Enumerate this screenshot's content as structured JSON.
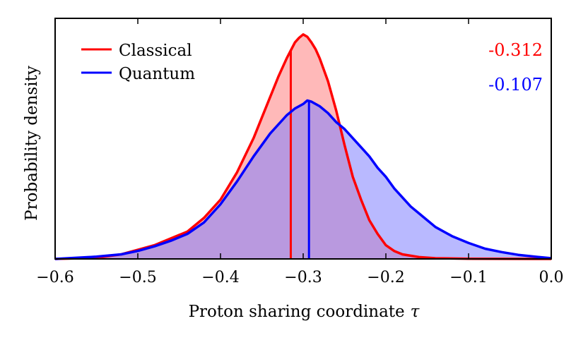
{
  "chart_data": {
    "type": "area",
    "title": "",
    "xlabel": "Proton sharing coordinate",
    "xlabel_symbol": "τ",
    "ylabel": "Probability density",
    "xlim": [
      -0.6,
      0.0
    ],
    "ylim": [
      0,
      1.0
    ],
    "x_ticks": [
      -0.6,
      -0.5,
      -0.4,
      -0.3,
      -0.2,
      -0.1,
      0.0
    ],
    "x_tick_labels": [
      "−0.6",
      "−0.5",
      "−0.4",
      "−0.3",
      "−0.2",
      "−0.1",
      "0.0"
    ],
    "y_ticks_shown": false,
    "legend": {
      "position": "top-left"
    },
    "series": [
      {
        "name": "Classical",
        "color": "#ff0000",
        "fill": "#ff8080",
        "mean": -0.312,
        "mean_label": "-0.312",
        "x": [
          -0.6,
          -0.55,
          -0.52,
          -0.5,
          -0.48,
          -0.46,
          -0.44,
          -0.42,
          -0.4,
          -0.38,
          -0.36,
          -0.35,
          -0.34,
          -0.33,
          -0.32,
          -0.31,
          -0.305,
          -0.3,
          -0.295,
          -0.29,
          -0.285,
          -0.28,
          -0.27,
          -0.26,
          -0.25,
          -0.24,
          -0.23,
          -0.22,
          -0.21,
          -0.2,
          -0.19,
          -0.18,
          -0.16,
          -0.14,
          -0.1,
          0.0
        ],
        "y": [
          0.0,
          0.005,
          0.02,
          0.04,
          0.06,
          0.09,
          0.12,
          0.18,
          0.26,
          0.38,
          0.53,
          0.62,
          0.71,
          0.8,
          0.88,
          0.95,
          0.97,
          0.985,
          0.975,
          0.95,
          0.92,
          0.88,
          0.78,
          0.65,
          0.5,
          0.36,
          0.26,
          0.17,
          0.11,
          0.06,
          0.035,
          0.02,
          0.008,
          0.003,
          0.001,
          0.0
        ]
      },
      {
        "name": "Quantum",
        "color": "#0000ff",
        "fill": "#8080ff",
        "mean": -0.107,
        "mean_label": "-0.107",
        "x": [
          -0.6,
          -0.55,
          -0.52,
          -0.5,
          -0.48,
          -0.46,
          -0.44,
          -0.42,
          -0.4,
          -0.38,
          -0.36,
          -0.34,
          -0.32,
          -0.31,
          -0.3,
          -0.295,
          -0.29,
          -0.28,
          -0.27,
          -0.26,
          -0.25,
          -0.24,
          -0.23,
          -0.22,
          -0.21,
          -0.2,
          -0.19,
          -0.18,
          -0.17,
          -0.16,
          -0.15,
          -0.14,
          -0.12,
          -0.1,
          -0.08,
          -0.06,
          -0.04,
          -0.02,
          0.0
        ],
        "y": [
          0.0,
          0.01,
          0.02,
          0.035,
          0.055,
          0.08,
          0.11,
          0.16,
          0.24,
          0.34,
          0.45,
          0.55,
          0.63,
          0.66,
          0.68,
          0.695,
          0.69,
          0.67,
          0.64,
          0.6,
          0.57,
          0.53,
          0.49,
          0.45,
          0.4,
          0.36,
          0.31,
          0.27,
          0.23,
          0.2,
          0.17,
          0.14,
          0.1,
          0.07,
          0.045,
          0.03,
          0.018,
          0.01,
          0.003
        ]
      }
    ]
  }
}
